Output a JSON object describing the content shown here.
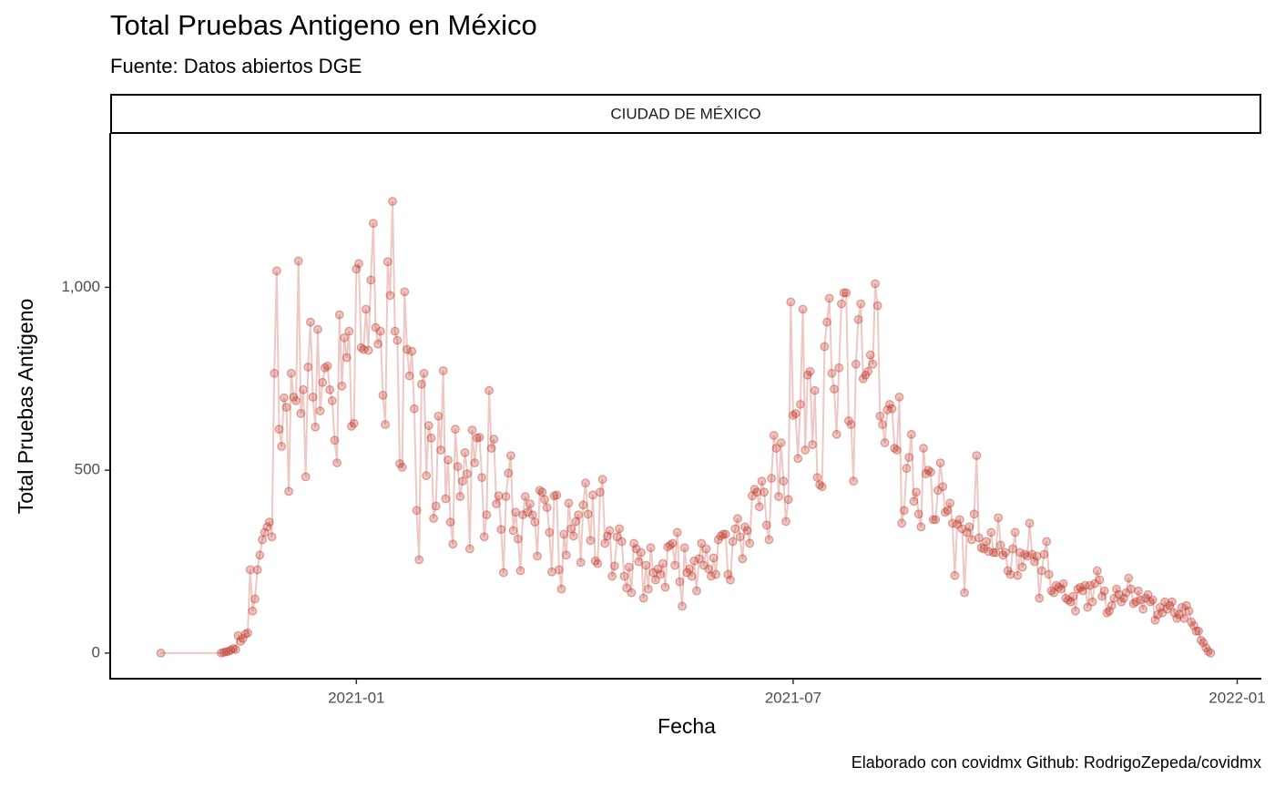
{
  "chart_data": {
    "type": "line",
    "title": "Total Pruebas Antigeno en México",
    "subtitle": "Fuente: Datos abiertos DGE",
    "facet_label": "CIUDAD DE MÉXICO",
    "x_label": "Fecha",
    "y_label": "Total Pruebas Antigeno",
    "caption": "Elaborado con covidmx Github: RodrigoZepeda/covidmx",
    "xlim": [
      "2020-09-21",
      "2022-01-11"
    ],
    "xticks": [
      "2021-01",
      "2021-07",
      "2022-01"
    ],
    "ylim": [
      -70,
      1422
    ],
    "yticks": [
      0,
      500,
      {
        "value": 1000,
        "label": "1,000"
      }
    ],
    "grid": false,
    "series": [
      {
        "name": "CIUDAD DE MÉXICO",
        "color": "#c0392b",
        "x": [
          "2020-10-12",
          "2020-11-06",
          "2020-11-07",
          "2020-11-08",
          "2020-11-09",
          "2020-11-10",
          "2020-11-11",
          "2020-11-12",
          "2020-11-13",
          "2020-11-14",
          "2020-11-15",
          "2020-11-16",
          "2020-11-17",
          "2020-11-18",
          "2020-11-19",
          "2020-11-20",
          "2020-11-21",
          "2020-11-22",
          "2020-11-23",
          "2020-11-24",
          "2020-11-25",
          "2020-11-26",
          "2020-11-27",
          "2020-11-28",
          "2020-11-29",
          "2020-11-30",
          "2020-12-01",
          "2020-12-02",
          "2020-12-03",
          "2020-12-04",
          "2020-12-05",
          "2020-12-06",
          "2020-12-07",
          "2020-12-08",
          "2020-12-09",
          "2020-12-10",
          "2020-12-11",
          "2020-12-12",
          "2020-12-13",
          "2020-12-14",
          "2020-12-15",
          "2020-12-16",
          "2020-12-17",
          "2020-12-18",
          "2020-12-19",
          "2020-12-20",
          "2020-12-21",
          "2020-12-22",
          "2020-12-23",
          "2020-12-24",
          "2020-12-25",
          "2020-12-26",
          "2020-12-27",
          "2020-12-28",
          "2020-12-29",
          "2020-12-30",
          "2020-12-31",
          "2021-01-01",
          "2021-01-02",
          "2021-01-03",
          "2021-01-04",
          "2021-01-05",
          "2021-01-06",
          "2021-01-07",
          "2021-01-08",
          "2021-01-09",
          "2021-01-10",
          "2021-01-11",
          "2021-01-12",
          "2021-01-13",
          "2021-01-14",
          "2021-01-15",
          "2021-01-16",
          "2021-01-17",
          "2021-01-18",
          "2021-01-19",
          "2021-01-20",
          "2021-01-21",
          "2021-01-22",
          "2021-01-23",
          "2021-01-24",
          "2021-01-25",
          "2021-01-26",
          "2021-01-27",
          "2021-01-28",
          "2021-01-29",
          "2021-01-30",
          "2021-01-31",
          "2021-02-01",
          "2021-02-02",
          "2021-02-03",
          "2021-02-04",
          "2021-02-05",
          "2021-02-06",
          "2021-02-07",
          "2021-02-08",
          "2021-02-09",
          "2021-02-10",
          "2021-02-11",
          "2021-02-12",
          "2021-02-13",
          "2021-02-14",
          "2021-02-15",
          "2021-02-16",
          "2021-02-17",
          "2021-02-18",
          "2021-02-19",
          "2021-02-20",
          "2021-02-21",
          "2021-02-22",
          "2021-02-23",
          "2021-02-24",
          "2021-02-25",
          "2021-02-26",
          "2021-02-27",
          "2021-02-28",
          "2021-03-01",
          "2021-03-02",
          "2021-03-03",
          "2021-03-04",
          "2021-03-05",
          "2021-03-06",
          "2021-03-07",
          "2021-03-08",
          "2021-03-09",
          "2021-03-10",
          "2021-03-11",
          "2021-03-12",
          "2021-03-13",
          "2021-03-14",
          "2021-03-15",
          "2021-03-16",
          "2021-03-17",
          "2021-03-18",
          "2021-03-19",
          "2021-03-20",
          "2021-03-21",
          "2021-03-22",
          "2021-03-23",
          "2021-03-24",
          "2021-03-25",
          "2021-03-26",
          "2021-03-27",
          "2021-03-28",
          "2021-03-29",
          "2021-03-30",
          "2021-03-31",
          "2021-04-01",
          "2021-04-02",
          "2021-04-03",
          "2021-04-04",
          "2021-04-05",
          "2021-04-06",
          "2021-04-07",
          "2021-04-08",
          "2021-04-09",
          "2021-04-10",
          "2021-04-11",
          "2021-04-12",
          "2021-04-13",
          "2021-04-14",
          "2021-04-15",
          "2021-04-16",
          "2021-04-17",
          "2021-04-18",
          "2021-04-19",
          "2021-04-20",
          "2021-04-21",
          "2021-04-22",
          "2021-04-23",
          "2021-04-24",
          "2021-04-25",
          "2021-04-26",
          "2021-04-27",
          "2021-04-28",
          "2021-04-29",
          "2021-04-30",
          "2021-05-01",
          "2021-05-02",
          "2021-05-03",
          "2021-05-04",
          "2021-05-05",
          "2021-05-06",
          "2021-05-07",
          "2021-05-08",
          "2021-05-09",
          "2021-05-10",
          "2021-05-11",
          "2021-05-12",
          "2021-05-13",
          "2021-05-14",
          "2021-05-15",
          "2021-05-16",
          "2021-05-17",
          "2021-05-18",
          "2021-05-19",
          "2021-05-20",
          "2021-05-21",
          "2021-05-22",
          "2021-05-23",
          "2021-05-24",
          "2021-05-25",
          "2021-05-26",
          "2021-05-27",
          "2021-05-28",
          "2021-05-29",
          "2021-05-30",
          "2021-05-31",
          "2021-06-01",
          "2021-06-02",
          "2021-06-03",
          "2021-06-04",
          "2021-06-05",
          "2021-06-06",
          "2021-06-07",
          "2021-06-08",
          "2021-06-09",
          "2021-06-10",
          "2021-06-11",
          "2021-06-12",
          "2021-06-13",
          "2021-06-14",
          "2021-06-15",
          "2021-06-16",
          "2021-06-17",
          "2021-06-18",
          "2021-06-19",
          "2021-06-20",
          "2021-06-21",
          "2021-06-22",
          "2021-06-23",
          "2021-06-24",
          "2021-06-25",
          "2021-06-26",
          "2021-06-27",
          "2021-06-28",
          "2021-06-29",
          "2021-06-30",
          "2021-07-01",
          "2021-07-02",
          "2021-07-03",
          "2021-07-04",
          "2021-07-05",
          "2021-07-06",
          "2021-07-07",
          "2021-07-08",
          "2021-07-09",
          "2021-07-10",
          "2021-07-11",
          "2021-07-12",
          "2021-07-13",
          "2021-07-14",
          "2021-07-15",
          "2021-07-16",
          "2021-07-17",
          "2021-07-18",
          "2021-07-19",
          "2021-07-20",
          "2021-07-21",
          "2021-07-22",
          "2021-07-23",
          "2021-07-24",
          "2021-07-25",
          "2021-07-26",
          "2021-07-27",
          "2021-07-28",
          "2021-07-29",
          "2021-07-30",
          "2021-07-31",
          "2021-08-01",
          "2021-08-02",
          "2021-08-03",
          "2021-08-04",
          "2021-08-05",
          "2021-08-06",
          "2021-08-07",
          "2021-08-08",
          "2021-08-09",
          "2021-08-10",
          "2021-08-11",
          "2021-08-12",
          "2021-08-13",
          "2021-08-14",
          "2021-08-15",
          "2021-08-16",
          "2021-08-17",
          "2021-08-18",
          "2021-08-19",
          "2021-08-20",
          "2021-08-21",
          "2021-08-22",
          "2021-08-23",
          "2021-08-24",
          "2021-08-25",
          "2021-08-26",
          "2021-08-27",
          "2021-08-28",
          "2021-08-29",
          "2021-08-30",
          "2021-08-31",
          "2021-09-01",
          "2021-09-02",
          "2021-09-03",
          "2021-09-04",
          "2021-09-05",
          "2021-09-06",
          "2021-09-07",
          "2021-09-08",
          "2021-09-09",
          "2021-09-10",
          "2021-09-11",
          "2021-09-12",
          "2021-09-13",
          "2021-09-14",
          "2021-09-15",
          "2021-09-16",
          "2021-09-17",
          "2021-09-18",
          "2021-09-19",
          "2021-09-20",
          "2021-09-21",
          "2021-09-22",
          "2021-09-23",
          "2021-09-24",
          "2021-09-25",
          "2021-09-26",
          "2021-09-27",
          "2021-09-28",
          "2021-09-29",
          "2021-09-30",
          "2021-10-01",
          "2021-10-02",
          "2021-10-03",
          "2021-10-04",
          "2021-10-05",
          "2021-10-06",
          "2021-10-07",
          "2021-10-08",
          "2021-10-09",
          "2021-10-10",
          "2021-10-11",
          "2021-10-12",
          "2021-10-13",
          "2021-10-14",
          "2021-10-15",
          "2021-10-16",
          "2021-10-17",
          "2021-10-18",
          "2021-10-19",
          "2021-10-20",
          "2021-10-21",
          "2021-10-22",
          "2021-10-23",
          "2021-10-24",
          "2021-10-25",
          "2021-10-26",
          "2021-10-27",
          "2021-10-28",
          "2021-10-29",
          "2021-10-30",
          "2021-10-31",
          "2021-11-01",
          "2021-11-02",
          "2021-11-03",
          "2021-11-04",
          "2021-11-05",
          "2021-11-06",
          "2021-11-07",
          "2021-11-08",
          "2021-11-09",
          "2021-11-10",
          "2021-11-11",
          "2021-11-12",
          "2021-11-13",
          "2021-11-14",
          "2021-11-15",
          "2021-11-16",
          "2021-11-17",
          "2021-11-18",
          "2021-11-19",
          "2021-11-20",
          "2021-11-21",
          "2021-11-22",
          "2021-11-23",
          "2021-11-24",
          "2021-11-25",
          "2021-11-26",
          "2021-11-27",
          "2021-11-28",
          "2021-11-29",
          "2021-11-30",
          "2021-12-01",
          "2021-12-02",
          "2021-12-03",
          "2021-12-04",
          "2021-12-05",
          "2021-12-06",
          "2021-12-07",
          "2021-12-08",
          "2021-12-09",
          "2021-12-10",
          "2021-12-11",
          "2021-12-12",
          "2021-12-13",
          "2021-12-14",
          "2021-12-15",
          "2021-12-16",
          "2021-12-17",
          "2021-12-18",
          "2021-12-19",
          "2021-12-20",
          "2021-12-21"
        ],
        "values": [
          0,
          0,
          2,
          3,
          5,
          8,
          12,
          10,
          48,
          32,
          40,
          52,
          55,
          228,
          115,
          148,
          228,
          268,
          310,
          330,
          345,
          358,
          318,
          765,
          1045,
          612,
          565,
          698,
          672,
          442,
          765,
          700,
          690,
          1072,
          655,
          720,
          482,
          782,
          905,
          700,
          618,
          885,
          662,
          740,
          780,
          785,
          720,
          690,
          582,
          520,
          925,
          730,
          862,
          808,
          880,
          620,
          628,
          1050,
          1065,
          835,
          830,
          940,
          828,
          1020,
          1175,
          890,
          845,
          880,
          705,
          625,
          1070,
          978,
          1235,
          880,
          855,
          518,
          508,
          988,
          830,
          758,
          825,
          668,
          390,
          255,
          735,
          765,
          485,
          622,
          588,
          368,
          402,
          648,
          555,
          772,
          422,
          528,
          358,
          298,
          612,
          510,
          428,
          470,
          548,
          490,
          285,
          610,
          520,
          588,
          590,
          480,
          318,
          378,
          718,
          560,
          585,
          408,
          430,
          338,
          220,
          428,
          492,
          540,
          335,
          385,
          312,
          225,
          378,
          428,
          385,
          408,
          378,
          358,
          265,
          445,
          440,
          420,
          398,
          330,
          222,
          430,
          432,
          228,
          175,
          325,
          268,
          410,
          340,
          320,
          360,
          378,
          248,
          405,
          465,
          380,
          308,
          432,
          252,
          245,
          440,
          475,
          300,
          320,
          335,
          210,
          238,
          318,
          340,
          305,
          210,
          178,
          235,
          165,
          300,
          285,
          250,
          275,
          150,
          240,
          175,
          288,
          220,
          200,
          230,
          215,
          245,
          180,
          290,
          295,
          300,
          240,
          330,
          195,
          128,
          288,
          220,
          230,
          210,
          252,
          170,
          258,
          300,
          240,
          285,
          230,
          210,
          260,
          215,
          310,
          320,
          325,
          325,
          215,
          200,
          305,
          340,
          368,
          318,
          258,
          345,
          335,
          300,
          430,
          448,
          440,
          400,
          470,
          440,
          350,
          310,
          478,
          595,
          560,
          428,
          575,
          470,
          360,
          420,
          960,
          650,
          655,
          532,
          680,
          940,
          555,
          760,
          770,
          570,
          718,
          480,
          460,
          455,
          838,
          905,
          970,
          765,
          722,
          598,
          780,
          955,
          985,
          985,
          635,
          625,
          470,
          790,
          912,
          955,
          750,
          760,
          770,
          815,
          790,
          1010,
          950,
          648,
          625,
          575,
          665,
          680,
          668,
          560,
          555,
          700,
          355,
          390,
          505,
          535,
          598,
          415,
          440,
          380,
          345,
          560,
          490,
          500,
          495,
          365,
          365,
          445,
          520,
          455,
          385,
          390,
          410,
          355,
          212,
          352,
          365,
          340,
          165,
          330,
          345,
          310,
          380,
          540,
          315,
          288,
          285,
          305,
          278,
          330,
          275,
          275,
          370,
          295,
          268,
          275,
          225,
          215,
          285,
          330,
          212,
          275,
          235,
          270,
          265,
          355,
          270,
          250,
          265,
          150,
          225,
          270,
          305,
          215,
          170,
          165,
          185,
          180,
          175,
          190,
          150,
          145,
          140,
          155,
          115,
          175,
          180,
          170,
          185,
          125,
          185,
          140,
          190,
          225,
          200,
          155,
          170,
          110,
          115,
          130,
          150,
          175,
          160,
          140,
          150,
          165,
          205,
          175,
          135,
          140,
          170,
          145,
          120,
          150,
          160,
          140,
          145,
          90,
          105,
          125,
          110,
          140,
          120,
          130,
          140,
          110,
          95,
          105,
          125,
          95,
          130,
          115,
          85,
          75,
          60,
          60,
          35,
          28,
          15,
          5,
          0
        ]
      }
    ]
  }
}
